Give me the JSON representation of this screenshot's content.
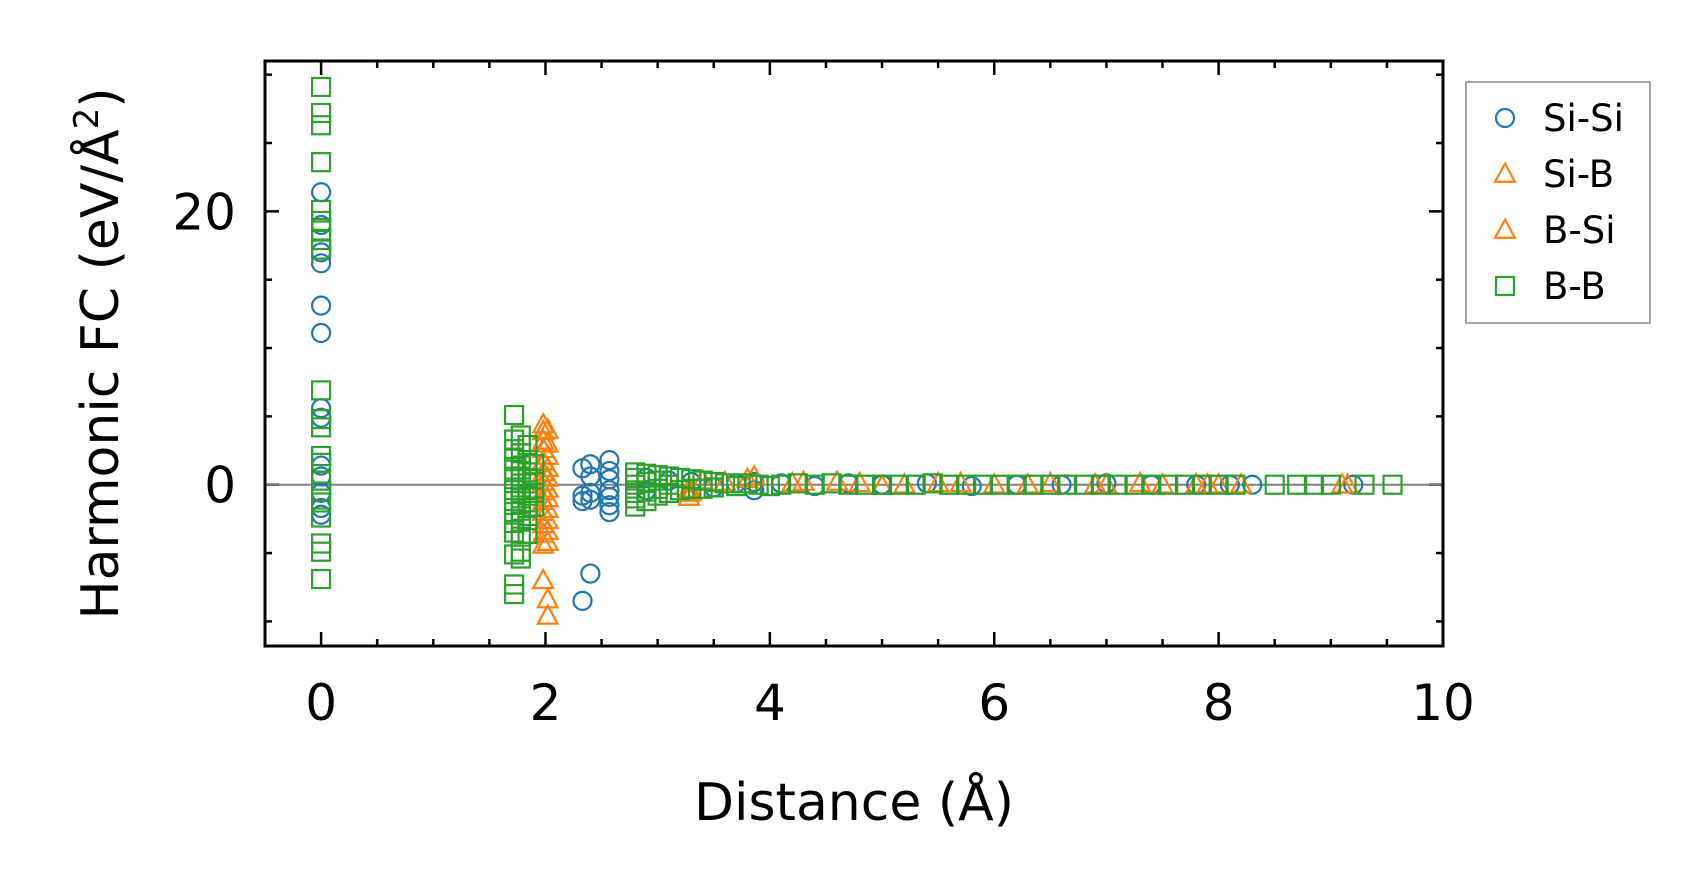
{
  "chart_data": {
    "type": "scatter",
    "xlabel": "Distance (Å)",
    "ylabel_main": "Harmonic FC (eV/Å",
    "ylabel_sup": "2",
    "ylabel_close": ")",
    "xlim": [
      -0.5,
      10
    ],
    "ylim": [
      -11.8,
      31
    ],
    "x_ticks": [
      0,
      2,
      4,
      6,
      8,
      10
    ],
    "y_ticks": [
      0,
      20
    ],
    "x_minor_step": 0.5,
    "y_minor_step": 5,
    "reference_line_y": 0,
    "grid": false,
    "legend_position": "upper right, outside plot",
    "series": [
      {
        "name": "Si-Si",
        "marker": "circle",
        "color": "#1f77b4",
        "points": [
          [
            0,
            21.4
          ],
          [
            0,
            19.0
          ],
          [
            0,
            17.0
          ],
          [
            0,
            16.2
          ],
          [
            0,
            13.1
          ],
          [
            0,
            11.1
          ],
          [
            0,
            5.6
          ],
          [
            0,
            4.9
          ],
          [
            0,
            1.4
          ],
          [
            0,
            0.6
          ],
          [
            0,
            -0.6
          ],
          [
            0,
            -1.7
          ],
          [
            0,
            -2.2
          ],
          [
            2.33,
            1.2
          ],
          [
            2.33,
            -0.8
          ],
          [
            2.33,
            -1.2
          ],
          [
            2.33,
            -8.5
          ],
          [
            2.4,
            1.5
          ],
          [
            2.4,
            0.6
          ],
          [
            2.4,
            -0.6
          ],
          [
            2.4,
            -1.1
          ],
          [
            2.4,
            -6.5
          ],
          [
            2.57,
            1.8
          ],
          [
            2.57,
            1.0
          ],
          [
            2.57,
            0.4
          ],
          [
            2.57,
            -0.4
          ],
          [
            2.57,
            -0.9
          ],
          [
            2.57,
            -1.5
          ],
          [
            2.57,
            -2.0
          ],
          [
            2.9,
            0.5
          ],
          [
            2.9,
            -0.4
          ],
          [
            3.1,
            0.3
          ],
          [
            3.3,
            0.2
          ],
          [
            3.5,
            -0.2
          ],
          [
            3.7,
            0.1
          ],
          [
            3.86,
            -0.4
          ],
          [
            3.86,
            0.2
          ],
          [
            4.1,
            0.1
          ],
          [
            4.4,
            -0.1
          ],
          [
            4.7,
            0.1
          ],
          [
            5.0,
            0.0
          ],
          [
            5.4,
            0.1
          ],
          [
            5.8,
            -0.1
          ],
          [
            6.2,
            0.0
          ],
          [
            6.6,
            0.0
          ],
          [
            7.0,
            0.1
          ],
          [
            7.4,
            0.0
          ],
          [
            7.8,
            0.0
          ],
          [
            8.1,
            0.0
          ],
          [
            8.3,
            0.0
          ],
          [
            9.2,
            0.0
          ]
        ]
      },
      {
        "name": "Si-B",
        "marker": "triangle",
        "color": "#ff7f0e",
        "points": [
          [
            1.98,
            4.4
          ],
          [
            1.98,
            3.9
          ],
          [
            1.98,
            3.2
          ],
          [
            1.98,
            2.6
          ],
          [
            1.98,
            1.7
          ],
          [
            1.98,
            0.9
          ],
          [
            1.98,
            0.2
          ],
          [
            1.98,
            -0.5
          ],
          [
            1.98,
            -1.2
          ],
          [
            1.98,
            -2.0
          ],
          [
            1.98,
            -2.9
          ],
          [
            1.98,
            -3.6
          ],
          [
            1.98,
            -4.4
          ],
          [
            1.98,
            -7.0
          ],
          [
            3.28,
            -0.6
          ],
          [
            3.28,
            -0.9
          ],
          [
            3.28,
            -0.3
          ],
          [
            3.6,
            0.2
          ],
          [
            3.86,
            0.6
          ],
          [
            4.2,
            0.1
          ],
          [
            4.6,
            0.2
          ],
          [
            5.0,
            -0.1
          ],
          [
            5.5,
            0.1
          ],
          [
            6.0,
            0.0
          ],
          [
            6.5,
            0.1
          ],
          [
            7.0,
            0.0
          ],
          [
            7.5,
            0.0
          ],
          [
            7.9,
            0.0
          ],
          [
            8.2,
            0.0
          ],
          [
            9.1,
            0.0
          ]
        ]
      },
      {
        "name": "B-Si",
        "marker": "triangle",
        "color": "#ff7f0e",
        "points": [
          [
            2.02,
            4.0
          ],
          [
            2.02,
            3.0
          ],
          [
            2.02,
            2.1
          ],
          [
            2.02,
            1.2
          ],
          [
            2.02,
            0.5
          ],
          [
            2.02,
            -0.3
          ],
          [
            2.02,
            -1.0
          ],
          [
            2.02,
            -1.8
          ],
          [
            2.02,
            -2.6
          ],
          [
            2.02,
            -3.4
          ],
          [
            2.02,
            -4.2
          ],
          [
            2.02,
            -8.4
          ],
          [
            2.02,
            -9.6
          ],
          [
            3.3,
            -0.5
          ],
          [
            3.4,
            0.3
          ],
          [
            3.8,
            0.4
          ],
          [
            4.3,
            0.2
          ],
          [
            4.8,
            0.1
          ],
          [
            5.2,
            0.0
          ],
          [
            5.7,
            0.1
          ],
          [
            6.3,
            0.0
          ],
          [
            6.9,
            0.0
          ],
          [
            7.3,
            0.1
          ],
          [
            7.8,
            0.0
          ],
          [
            8.0,
            0.0
          ],
          [
            9.15,
            0.0
          ]
        ]
      },
      {
        "name": "B-B",
        "marker": "square",
        "color": "#2ca02c",
        "points": [
          [
            0,
            29.1
          ],
          [
            0,
            27.2
          ],
          [
            0,
            26.3
          ],
          [
            0,
            23.6
          ],
          [
            0,
            20.1
          ],
          [
            0,
            19.3
          ],
          [
            0,
            18.6
          ],
          [
            0,
            17.9
          ],
          [
            0,
            17.2
          ],
          [
            0,
            6.9
          ],
          [
            0,
            4.8
          ],
          [
            0,
            4.2
          ],
          [
            0,
            2.1
          ],
          [
            0,
            1.6
          ],
          [
            0,
            0.3
          ],
          [
            0,
            -0.5
          ],
          [
            0,
            -1.3
          ],
          [
            0,
            -2.4
          ],
          [
            0,
            -4.3
          ],
          [
            0,
            -4.9
          ],
          [
            0,
            -6.9
          ],
          [
            1.72,
            5.1
          ],
          [
            1.72,
            3.3
          ],
          [
            1.72,
            2.6
          ],
          [
            1.72,
            1.9
          ],
          [
            1.72,
            1.1
          ],
          [
            1.72,
            0.4
          ],
          [
            1.72,
            -0.4
          ],
          [
            1.72,
            -1.2
          ],
          [
            1.72,
            -2.0
          ],
          [
            1.72,
            -2.8
          ],
          [
            1.72,
            -3.5
          ],
          [
            1.72,
            -5.1
          ],
          [
            1.72,
            -7.3
          ],
          [
            1.72,
            -8.0
          ],
          [
            1.78,
            3.6
          ],
          [
            1.78,
            2.3
          ],
          [
            1.78,
            1.4
          ],
          [
            1.78,
            0.6
          ],
          [
            1.78,
            -0.2
          ],
          [
            1.78,
            -1.0
          ],
          [
            1.78,
            -1.9
          ],
          [
            1.78,
            -2.7
          ],
          [
            1.78,
            -3.8
          ],
          [
            1.78,
            -4.9
          ],
          [
            1.78,
            -5.4
          ],
          [
            1.84,
            2.9
          ],
          [
            1.84,
            1.8
          ],
          [
            1.84,
            0.9
          ],
          [
            1.84,
            0.1
          ],
          [
            1.84,
            -0.8
          ],
          [
            1.84,
            -1.7
          ],
          [
            1.84,
            -2.6
          ],
          [
            1.84,
            -3.6
          ],
          [
            1.9,
            1.5
          ],
          [
            1.9,
            0.4
          ],
          [
            1.9,
            -0.6
          ],
          [
            1.9,
            -1.6
          ],
          [
            2.8,
            0.9
          ],
          [
            2.8,
            0.5
          ],
          [
            2.8,
            0.0
          ],
          [
            2.8,
            -0.6
          ],
          [
            2.8,
            -1.0
          ],
          [
            2.8,
            -1.6
          ],
          [
            2.9,
            0.8
          ],
          [
            2.9,
            0.2
          ],
          [
            2.9,
            -0.5
          ],
          [
            2.9,
            -1.2
          ],
          [
            3.0,
            0.7
          ],
          [
            3.0,
            0.3
          ],
          [
            3.0,
            -0.3
          ],
          [
            3.0,
            -0.8
          ],
          [
            3.1,
            0.6
          ],
          [
            3.1,
            0.0
          ],
          [
            3.1,
            -0.6
          ],
          [
            3.2,
            0.5
          ],
          [
            3.2,
            -0.4
          ],
          [
            3.3,
            0.4
          ],
          [
            3.3,
            -0.3
          ],
          [
            3.4,
            0.3
          ],
          [
            3.4,
            -0.3
          ],
          [
            3.5,
            0.2
          ],
          [
            3.5,
            -0.2
          ],
          [
            3.6,
            0.1
          ],
          [
            3.7,
            -0.1
          ],
          [
            3.8,
            0.1
          ],
          [
            3.9,
            0.0
          ],
          [
            4.0,
            -0.1
          ],
          [
            4.1,
            0.0
          ],
          [
            4.25,
            0.1
          ],
          [
            4.4,
            0.0
          ],
          [
            4.55,
            0.1
          ],
          [
            4.7,
            0.0
          ],
          [
            4.85,
            0.0
          ],
          [
            5.0,
            0.0
          ],
          [
            5.15,
            0.0
          ],
          [
            5.3,
            0.0
          ],
          [
            5.45,
            0.1
          ],
          [
            5.6,
            0.0
          ],
          [
            5.75,
            0.0
          ],
          [
            5.9,
            0.0
          ],
          [
            6.05,
            0.0
          ],
          [
            6.2,
            0.0
          ],
          [
            6.35,
            0.0
          ],
          [
            6.5,
            0.0
          ],
          [
            6.65,
            0.0
          ],
          [
            6.8,
            0.0
          ],
          [
            6.95,
            0.0
          ],
          [
            7.1,
            0.0
          ],
          [
            7.25,
            0.0
          ],
          [
            7.4,
            0.0
          ],
          [
            7.55,
            0.0
          ],
          [
            7.7,
            0.0
          ],
          [
            7.85,
            0.0
          ],
          [
            8.0,
            0.0
          ],
          [
            8.15,
            0.0
          ],
          [
            8.5,
            0.0
          ],
          [
            8.7,
            0.0
          ],
          [
            8.85,
            0.0
          ],
          [
            9.0,
            0.0
          ],
          [
            9.3,
            0.0
          ],
          [
            9.55,
            0.0
          ]
        ]
      }
    ]
  }
}
